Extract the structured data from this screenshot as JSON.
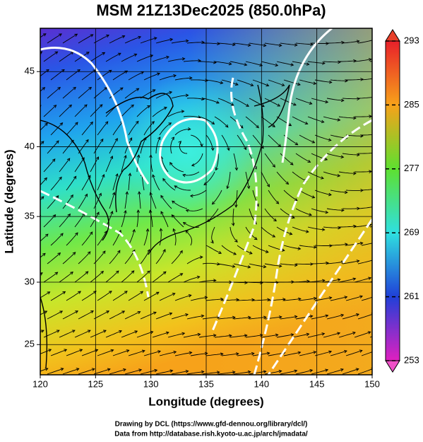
{
  "title": "MSM 21Z13Dec2025 (850.0hPa)",
  "x_axis": {
    "label": "Longitude (degrees)",
    "lim": [
      120,
      150
    ],
    "ticks": [
      120,
      125,
      130,
      135,
      140,
      145,
      150
    ]
  },
  "y_axis": {
    "label": "Latitude  (degrees)",
    "lim": [
      22.5,
      47.7
    ],
    "ticks": [
      25,
      30,
      35,
      40,
      45
    ]
  },
  "colorbar": {
    "lim": [
      253,
      293
    ],
    "ticks": [
      253,
      261,
      269,
      277,
      285,
      293
    ]
  },
  "credits": [
    "Drawing by DCL (https://www.gfd-dennou.org/library/dcl/)",
    "Data from http://database.rish.kyoto-u.ac.jp/arch/jmadata/"
  ]
}
